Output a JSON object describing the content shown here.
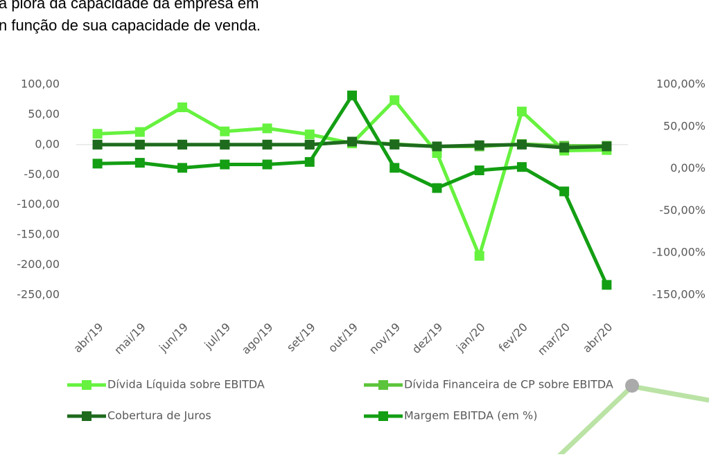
{
  "text_lines": [
    "a piora da capacidade da empresa em",
    "n função de sua capacidade de venda."
  ],
  "chart_data": {
    "type": "line",
    "categories": [
      "abr/19",
      "mai/19",
      "jun/19",
      "jul/19",
      "ago/19",
      "set/19",
      "out/19",
      "nov/19",
      "dez/19",
      "jan/20",
      "fev/20",
      "mar/20",
      "abr/20"
    ],
    "series": [
      {
        "name": "Dívida Líquida sobre EBITDA",
        "color": "#66f23f",
        "values": [
          18,
          21,
          62,
          22,
          27,
          17,
          2,
          74,
          -14,
          -185,
          55,
          -10,
          -9
        ]
      },
      {
        "name": "Dívida Financeira de CP sobre EBITDA",
        "color": "#5cc43a",
        "values": [
          0,
          0,
          0,
          0,
          0,
          0,
          5,
          1,
          -3,
          -3,
          1,
          -2,
          -2
        ]
      },
      {
        "name": "Cobertura de Juros",
        "color": "#1e6b1e",
        "values": [
          0,
          0,
          0,
          0,
          0,
          0,
          5,
          0,
          -3,
          -1,
          0,
          -5,
          -3
        ]
      },
      {
        "name": "Margem EBITDA (em %)",
        "color": "#139e13",
        "axis": "y2",
        "values": [
          6,
          7,
          1,
          5,
          5,
          8,
          87,
          1,
          -23,
          -2,
          2,
          -27,
          -138
        ]
      }
    ],
    "ylim": [
      -250,
      100
    ],
    "yticks": [
      {
        "value": 100,
        "label": "100,00"
      },
      {
        "value": 50,
        "label": "50,00"
      },
      {
        "value": 0,
        "label": "0,00"
      },
      {
        "value": -50,
        "label": "-50,00"
      },
      {
        "value": -100,
        "label": "-100,00"
      },
      {
        "value": -150,
        "label": "-150,00"
      },
      {
        "value": -200,
        "label": "-200,00"
      },
      {
        "value": -250,
        "label": "-250,00"
      }
    ],
    "y2lim": [
      -150,
      100
    ],
    "y2ticks": [
      {
        "value": 100,
        "label": "100,00%"
      },
      {
        "value": 50,
        "label": "50,00%"
      },
      {
        "value": 0,
        "label": "0,00%"
      },
      {
        "value": -50,
        "label": "-50,00%"
      },
      {
        "value": -100,
        "label": "-100,00%"
      },
      {
        "value": -150,
        "label": "-150,00%"
      }
    ]
  }
}
